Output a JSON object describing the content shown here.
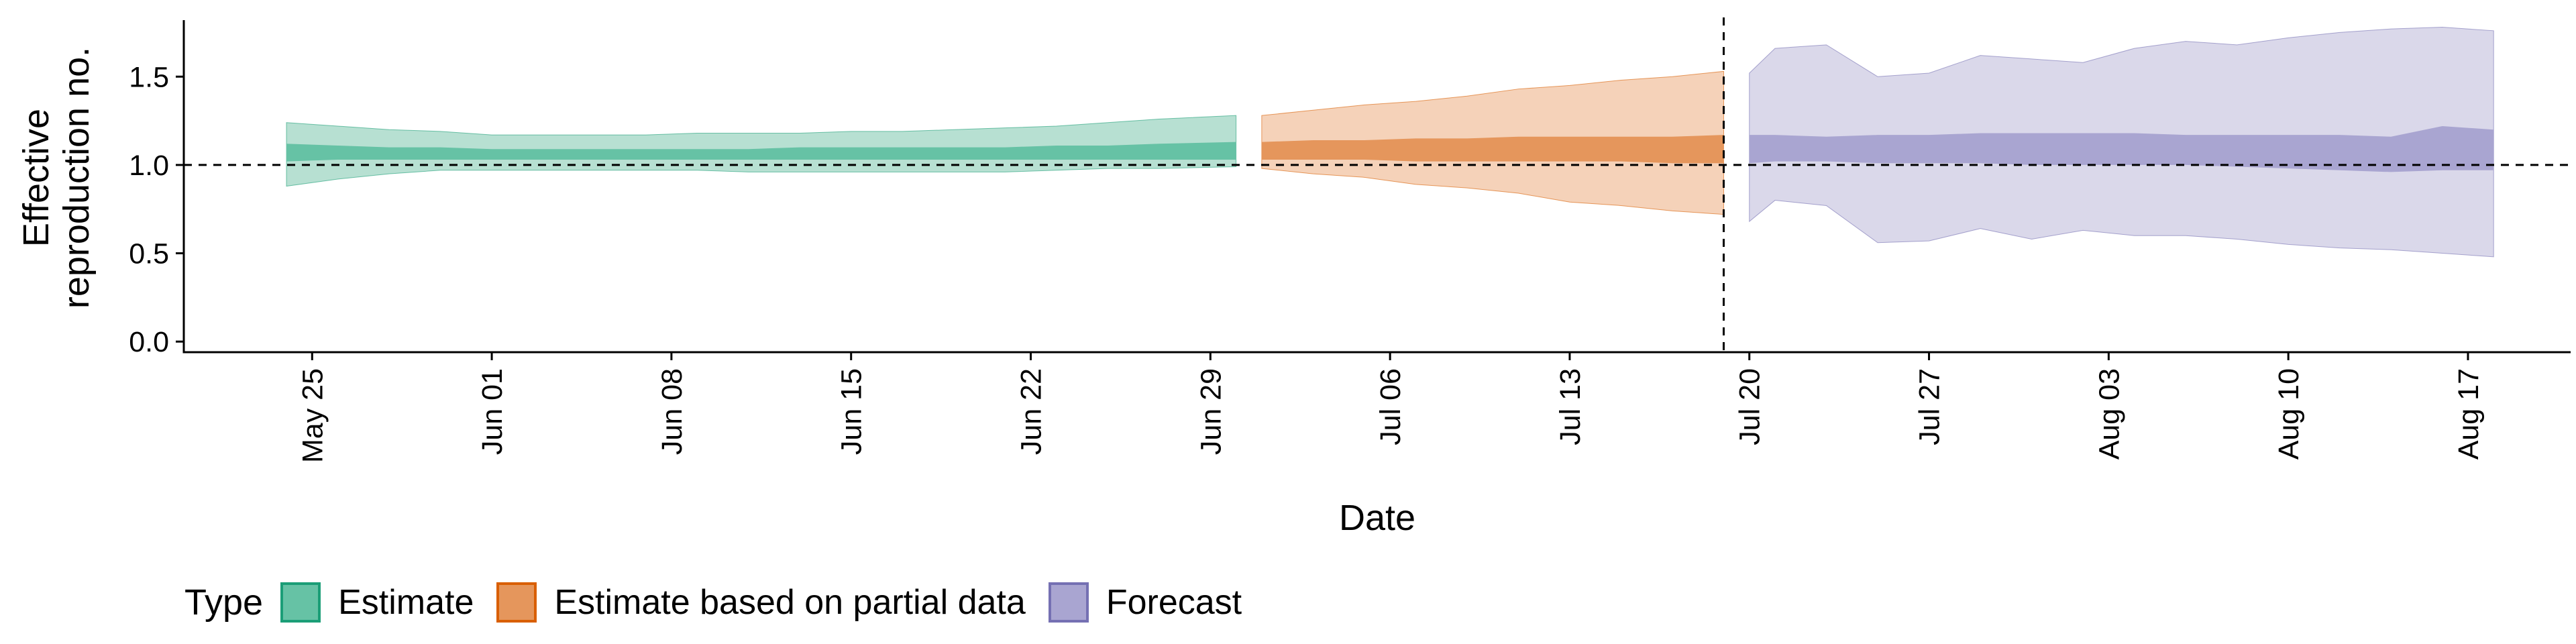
{
  "chart_data": {
    "type": "area",
    "title": "",
    "xlabel": "Date",
    "ylabel_lines": [
      "Effective",
      "reproduction no."
    ],
    "ylim": [
      -0.06,
      1.82
    ],
    "yticks": [
      0.0,
      0.5,
      1.0,
      1.5
    ],
    "ytick_labels": [
      "0.0",
      "0.5",
      "1.0",
      "1.5"
    ],
    "x_start": "2020-05-20",
    "x_end": "2020-08-21",
    "xticks": [
      "2020-05-25",
      "2020-06-01",
      "2020-06-08",
      "2020-06-15",
      "2020-06-22",
      "2020-06-29",
      "2020-07-06",
      "2020-07-13",
      "2020-07-20",
      "2020-07-27",
      "2020-08-03",
      "2020-08-10",
      "2020-08-17"
    ],
    "xtick_labels": [
      "May 25",
      "Jun 01",
      "Jun 08",
      "Jun 15",
      "Jun 22",
      "Jun 29",
      "Jul 06",
      "Jul 13",
      "Jul 20",
      "Jul 27",
      "Aug 03",
      "Aug 10",
      "Aug 17"
    ],
    "hline": 1.0,
    "vline": "2020-07-19",
    "grid": false,
    "legend_position": "bottom-left",
    "series": [
      {
        "name": "Estimate",
        "fill_outer": "#B7E0D2",
        "fill_inner": "#66C2A5",
        "stroke": "#1B9E77",
        "x": [
          "2020-05-24",
          "2020-05-26",
          "2020-05-28",
          "2020-05-30",
          "2020-06-01",
          "2020-06-03",
          "2020-06-05",
          "2020-06-07",
          "2020-06-09",
          "2020-06-11",
          "2020-06-13",
          "2020-06-15",
          "2020-06-17",
          "2020-06-19",
          "2020-06-21",
          "2020-06-23",
          "2020-06-25",
          "2020-06-27",
          "2020-06-30"
        ],
        "lower90": [
          0.88,
          0.92,
          0.95,
          0.97,
          0.97,
          0.97,
          0.97,
          0.97,
          0.97,
          0.96,
          0.96,
          0.96,
          0.96,
          0.96,
          0.96,
          0.97,
          0.98,
          0.98,
          0.99
        ],
        "upper90": [
          1.24,
          1.22,
          1.2,
          1.19,
          1.17,
          1.17,
          1.17,
          1.17,
          1.18,
          1.18,
          1.18,
          1.19,
          1.19,
          1.2,
          1.21,
          1.22,
          1.24,
          1.26,
          1.28
        ],
        "lower50": [
          1.02,
          1.03,
          1.03,
          1.03,
          1.03,
          1.03,
          1.03,
          1.03,
          1.03,
          1.03,
          1.03,
          1.03,
          1.03,
          1.03,
          1.03,
          1.03,
          1.03,
          1.03,
          1.03
        ],
        "upper50": [
          1.12,
          1.11,
          1.1,
          1.1,
          1.09,
          1.09,
          1.09,
          1.09,
          1.09,
          1.09,
          1.1,
          1.1,
          1.1,
          1.1,
          1.1,
          1.11,
          1.11,
          1.12,
          1.13
        ]
      },
      {
        "name": "Estimate based on partial data",
        "fill_outer": "#F5D2B9",
        "fill_inner": "#E5965C",
        "stroke": "#D95F02",
        "x": [
          "2020-07-01",
          "2020-07-03",
          "2020-07-05",
          "2020-07-07",
          "2020-07-09",
          "2020-07-11",
          "2020-07-13",
          "2020-07-15",
          "2020-07-17",
          "2020-07-19"
        ],
        "lower90": [
          0.98,
          0.95,
          0.93,
          0.89,
          0.87,
          0.84,
          0.79,
          0.77,
          0.74,
          0.72
        ],
        "upper90": [
          1.28,
          1.31,
          1.34,
          1.36,
          1.39,
          1.43,
          1.45,
          1.48,
          1.5,
          1.53
        ],
        "lower50": [
          1.03,
          1.03,
          1.03,
          1.02,
          1.02,
          1.02,
          1.02,
          1.02,
          1.01,
          1.01
        ],
        "upper50": [
          1.13,
          1.14,
          1.14,
          1.15,
          1.15,
          1.16,
          1.16,
          1.16,
          1.16,
          1.17
        ]
      },
      {
        "name": "Forecast",
        "fill_outer": "#DAD8EA",
        "fill_inner": "#A9A5D1",
        "stroke": "#7570B3",
        "x": [
          "2020-07-20",
          "2020-07-21",
          "2020-07-23",
          "2020-07-25",
          "2020-07-27",
          "2020-07-29",
          "2020-07-31",
          "2020-08-02",
          "2020-08-04",
          "2020-08-06",
          "2020-08-08",
          "2020-08-10",
          "2020-08-12",
          "2020-08-14",
          "2020-08-16",
          "2020-08-18"
        ],
        "lower90": [
          0.68,
          0.8,
          0.77,
          0.56,
          0.57,
          0.64,
          0.58,
          0.63,
          0.6,
          0.6,
          0.58,
          0.55,
          0.53,
          0.52,
          0.5,
          0.48
        ],
        "upper90": [
          1.52,
          1.66,
          1.68,
          1.5,
          1.52,
          1.62,
          1.6,
          1.58,
          1.66,
          1.7,
          1.68,
          1.72,
          1.75,
          1.77,
          1.78,
          1.76
        ],
        "lower50": [
          1.01,
          1.02,
          1.02,
          1.01,
          1.01,
          1.01,
          1.0,
          1.0,
          1.0,
          1.0,
          0.99,
          0.98,
          0.97,
          0.96,
          0.97,
          0.97
        ],
        "upper50": [
          1.17,
          1.17,
          1.16,
          1.17,
          1.17,
          1.18,
          1.18,
          1.18,
          1.18,
          1.17,
          1.17,
          1.17,
          1.17,
          1.16,
          1.22,
          1.2
        ]
      }
    ]
  },
  "legend": {
    "title": "Type",
    "items": [
      {
        "label": "Estimate",
        "fill": "#66C2A5",
        "stroke": "#1B9E77"
      },
      {
        "label": "Estimate based on partial data",
        "fill": "#E5965C",
        "stroke": "#D95F02"
      },
      {
        "label": "Forecast",
        "fill": "#A9A5D1",
        "stroke": "#7570B3"
      }
    ]
  }
}
